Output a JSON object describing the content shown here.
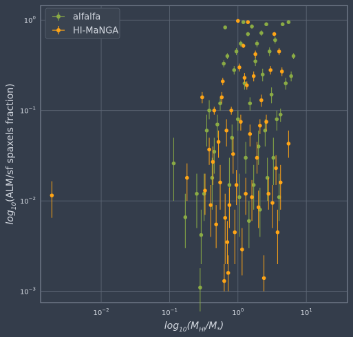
{
  "chart_data": {
    "type": "scatter",
    "xscale": "log",
    "yscale": "log",
    "xlim": [
      0.0013,
      40
    ],
    "ylim": [
      0.00075,
      1.45
    ],
    "grid": true,
    "legend_position": "top-left",
    "xticks": [
      {
        "value": 0.01,
        "base": "10",
        "exp": "−2"
      },
      {
        "value": 0.1,
        "base": "10",
        "exp": "−1"
      },
      {
        "value": 1,
        "base": "10",
        "exp": "0"
      },
      {
        "value": 10,
        "base": "10",
        "exp": "1"
      }
    ],
    "yticks": [
      {
        "value": 0.001,
        "base": "10",
        "exp": "−3"
      },
      {
        "value": 0.01,
        "base": "10",
        "exp": "−2"
      },
      {
        "value": 0.1,
        "base": "10",
        "exp": "−1"
      },
      {
        "value": 1,
        "base": "10",
        "exp": "0"
      }
    ],
    "xlabel": {
      "prefix": "log",
      "sub": "10",
      "open": "(M",
      "sub2": "HI",
      "mid": "/M",
      "sub3": "*",
      "close": ")"
    },
    "ylabel": {
      "prefix": "log",
      "sub": "10",
      "text": "(ALM/sf spaxels fraction)"
    },
    "series": [
      {
        "name": "alfalfa",
        "color": "#8aab45",
        "points": [
          [
            0.115,
            0.026,
            0.01,
            0.05
          ],
          [
            0.17,
            0.0066,
            0.003,
            0.012
          ],
          [
            0.25,
            0.012,
            0.005,
            0.02
          ],
          [
            0.28,
            0.0011,
            0.0006,
            0.0018
          ],
          [
            0.29,
            0.0042,
            0.002,
            0.008
          ],
          [
            0.32,
            0.012,
            0.006,
            0.02
          ],
          [
            0.35,
            0.06,
            0.04,
            0.09
          ],
          [
            0.38,
            0.1,
            0.08,
            0.13
          ],
          [
            0.42,
            0.018,
            0.008,
            0.03
          ],
          [
            0.45,
            0.035,
            0.02,
            0.05
          ],
          [
            0.5,
            0.07,
            0.05,
            0.09
          ],
          [
            0.55,
            0.12,
            0.1,
            0.14
          ],
          [
            0.62,
            0.33,
            0.3,
            0.36
          ],
          [
            0.65,
            0.83,
            0.8,
            0.86
          ],
          [
            0.7,
            0.4,
            0.37,
            0.43
          ],
          [
            0.75,
            0.015,
            0.006,
            0.03
          ],
          [
            0.82,
            0.05,
            0.035,
            0.07
          ],
          [
            0.88,
            0.28,
            0.25,
            0.31
          ],
          [
            0.95,
            0.45,
            0.41,
            0.49
          ],
          [
            1.0,
            0.08,
            0.06,
            0.1
          ],
          [
            1.05,
            0.011,
            0.004,
            0.02
          ],
          [
            1.1,
            0.55,
            0.51,
            0.59
          ],
          [
            1.2,
            0.95,
            0.91,
            0.99
          ],
          [
            1.25,
            0.2,
            0.17,
            0.23
          ],
          [
            1.3,
            0.03,
            0.02,
            0.045
          ],
          [
            1.4,
            0.7,
            0.66,
            0.74
          ],
          [
            1.45,
            0.006,
            0.003,
            0.01
          ],
          [
            1.5,
            0.12,
            0.1,
            0.14
          ],
          [
            1.6,
            0.85,
            0.8,
            0.9
          ],
          [
            1.7,
            0.015,
            0.008,
            0.025
          ],
          [
            1.8,
            0.35,
            0.31,
            0.39
          ],
          [
            1.9,
            0.55,
            0.5,
            0.6
          ],
          [
            2.0,
            0.04,
            0.025,
            0.06
          ],
          [
            2.1,
            0.008,
            0.004,
            0.014
          ],
          [
            2.2,
            0.72,
            0.67,
            0.77
          ],
          [
            2.3,
            0.25,
            0.21,
            0.29
          ],
          [
            2.5,
            0.06,
            0.04,
            0.08
          ],
          [
            2.6,
            0.9,
            0.86,
            0.94
          ],
          [
            2.7,
            0.018,
            0.01,
            0.03
          ],
          [
            2.9,
            0.45,
            0.4,
            0.5
          ],
          [
            3.1,
            0.15,
            0.12,
            0.18
          ],
          [
            3.3,
            0.03,
            0.015,
            0.05
          ],
          [
            3.5,
            0.6,
            0.55,
            0.65
          ],
          [
            3.7,
            0.08,
            0.06,
            0.1
          ],
          [
            4.0,
            0.011,
            0.006,
            0.02
          ],
          [
            4.2,
            0.09,
            0.075,
            0.105
          ],
          [
            4.5,
            0.9,
            0.86,
            0.94
          ],
          [
            5.0,
            0.2,
            0.17,
            0.23
          ],
          [
            5.5,
            0.95,
            0.91,
            0.99
          ],
          [
            6.0,
            0.24,
            0.21,
            0.27
          ],
          [
            6.5,
            0.4,
            0.37,
            0.43
          ]
        ]
      },
      {
        "name": "HI-MaNGA",
        "color": "#ffa516",
        "points": [
          [
            0.0019,
            0.0115,
            0.0065,
            0.0165
          ],
          [
            0.18,
            0.018,
            0.01,
            0.026
          ],
          [
            0.3,
            0.14,
            0.12,
            0.16
          ],
          [
            0.33,
            0.013,
            0.007,
            0.02
          ],
          [
            0.38,
            0.037,
            0.025,
            0.05
          ],
          [
            0.4,
            0.009,
            0.004,
            0.015
          ],
          [
            0.43,
            0.027,
            0.015,
            0.04
          ],
          [
            0.45,
            0.1,
            0.09,
            0.11
          ],
          [
            0.48,
            0.0055,
            0.003,
            0.009
          ],
          [
            0.52,
            0.045,
            0.03,
            0.06
          ],
          [
            0.55,
            0.016,
            0.008,
            0.025
          ],
          [
            0.58,
            0.14,
            0.12,
            0.16
          ],
          [
            0.6,
            0.21,
            0.19,
            0.23
          ],
          [
            0.63,
            0.0013,
            0.001,
            0.002
          ],
          [
            0.65,
            0.0065,
            0.002,
            0.012
          ],
          [
            0.68,
            0.06,
            0.04,
            0.08
          ],
          [
            0.7,
            0.0035,
            0.002,
            0.006
          ],
          [
            0.72,
            0.0016,
            0.001,
            0.0025
          ],
          [
            0.75,
            0.009,
            0.005,
            0.014
          ],
          [
            0.8,
            0.1,
            0.09,
            0.11
          ],
          [
            0.85,
            0.033,
            0.02,
            0.05
          ],
          [
            0.9,
            0.0045,
            0.002,
            0.008
          ],
          [
            0.95,
            0.015,
            0.009,
            0.022
          ],
          [
            1.0,
            0.98,
            0.95,
            1.01
          ],
          [
            1.05,
            0.3,
            0.27,
            0.33
          ],
          [
            1.1,
            0.075,
            0.06,
            0.09
          ],
          [
            1.15,
            0.0029,
            0.0015,
            0.005
          ],
          [
            1.2,
            0.52,
            0.49,
            0.55
          ],
          [
            1.25,
            0.23,
            0.2,
            0.26
          ],
          [
            1.3,
            0.012,
            0.007,
            0.018
          ],
          [
            1.35,
            0.19,
            0.17,
            0.21
          ],
          [
            1.4,
            0.95,
            0.91,
            0.99
          ],
          [
            1.5,
            0.055,
            0.04,
            0.07
          ],
          [
            1.6,
            0.011,
            0.006,
            0.017
          ],
          [
            1.7,
            0.24,
            0.21,
            0.27
          ],
          [
            1.8,
            0.42,
            0.38,
            0.46
          ],
          [
            1.9,
            0.03,
            0.02,
            0.045
          ],
          [
            2.0,
            0.0085,
            0.005,
            0.013
          ],
          [
            2.1,
            0.068,
            0.055,
            0.08
          ],
          [
            2.2,
            0.13,
            0.11,
            0.15
          ],
          [
            2.4,
            0.0014,
            0.001,
            0.0025
          ],
          [
            2.6,
            0.075,
            0.06,
            0.09
          ],
          [
            2.8,
            0.012,
            0.008,
            0.018
          ],
          [
            3.0,
            0.28,
            0.25,
            0.31
          ],
          [
            3.2,
            0.0095,
            0.005,
            0.015
          ],
          [
            3.4,
            0.7,
            0.66,
            0.74
          ],
          [
            3.6,
            0.023,
            0.015,
            0.032
          ],
          [
            3.8,
            0.0045,
            0.002,
            0.008
          ],
          [
            4.0,
            0.45,
            0.41,
            0.49
          ],
          [
            4.2,
            0.016,
            0.008,
            0.025
          ],
          [
            4.4,
            0.27,
            0.24,
            0.3
          ],
          [
            5.5,
            0.043,
            0.03,
            0.06
          ]
        ]
      }
    ]
  }
}
